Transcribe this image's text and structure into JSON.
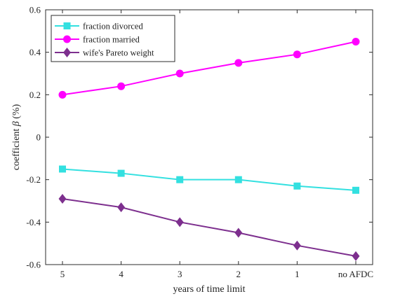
{
  "chart_data": {
    "type": "line",
    "categories": [
      "5",
      "4",
      "3",
      "2",
      "1",
      "no AFDC"
    ],
    "series": [
      {
        "name": "fraction divorced",
        "color": "#33e0e0",
        "marker": "square",
        "values": [
          -0.15,
          -0.17,
          -0.2,
          -0.2,
          -0.23,
          -0.25
        ]
      },
      {
        "name": "fraction married",
        "color": "#ff00ff",
        "marker": "circle",
        "values": [
          0.2,
          0.24,
          0.3,
          0.35,
          0.39,
          0.45
        ]
      },
      {
        "name": "wife's Pareto weight",
        "color": "#7d2f8e",
        "marker": "diamond",
        "values": [
          -0.29,
          -0.33,
          -0.4,
          -0.45,
          -0.51,
          -0.56
        ]
      }
    ],
    "xlabel": "years of time limit",
    "ylabel_prefix": "coefficient ",
    "ylabel_symbol": "β",
    "ylabel_suffix": " (%)",
    "ylim": [
      -0.6,
      0.6
    ],
    "yticks": [
      -0.6,
      -0.4,
      -0.2,
      0,
      0.2,
      0.4,
      0.6
    ],
    "ytick_labels": [
      "-0.6",
      "-0.4",
      "-0.2",
      "0",
      "0.2",
      "0.4",
      "0.6"
    ],
    "grid": false,
    "legend_position": "top-left"
  }
}
